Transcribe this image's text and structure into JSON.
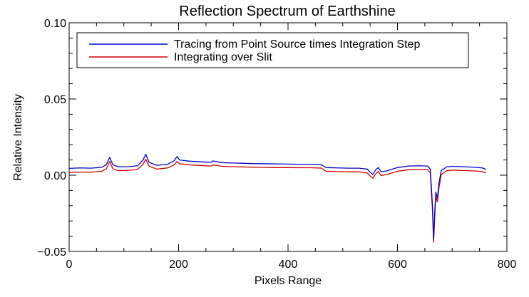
{
  "chart_data": {
    "type": "line",
    "title": "Reflection Spectrum of Earthshine",
    "xlabel": "Pixels Range",
    "ylabel": "Relative Intensity",
    "xlim": [
      0,
      800
    ],
    "ylim": [
      -0.05,
      0.1
    ],
    "x_ticks": [
      0,
      200,
      400,
      600,
      800
    ],
    "x_tick_labels": [
      "0",
      "200",
      "400",
      "600",
      "800"
    ],
    "y_ticks": [
      -0.05,
      0.0,
      0.05,
      0.1
    ],
    "y_tick_labels": [
      "−0.05",
      "0.00",
      "0.05",
      "0.10"
    ],
    "grid": false,
    "legend": "top-left-inside",
    "series": [
      {
        "name": "Tracing from Point Source times Integration Step",
        "color": "#0000cc",
        "points": [
          [
            0,
            0.0045
          ],
          [
            20,
            0.0048
          ],
          [
            40,
            0.0046
          ],
          [
            60,
            0.0052
          ],
          [
            68,
            0.007
          ],
          [
            74,
            0.0118
          ],
          [
            80,
            0.0068
          ],
          [
            90,
            0.0055
          ],
          [
            110,
            0.0056
          ],
          [
            125,
            0.0062
          ],
          [
            135,
            0.01
          ],
          [
            140,
            0.0138
          ],
          [
            146,
            0.0085
          ],
          [
            160,
            0.0065
          ],
          [
            180,
            0.0072
          ],
          [
            192,
            0.0095
          ],
          [
            197,
            0.0122
          ],
          [
            202,
            0.01
          ],
          [
            220,
            0.0092
          ],
          [
            240,
            0.0088
          ],
          [
            260,
            0.0085
          ],
          [
            262,
            0.0094
          ],
          [
            280,
            0.0082
          ],
          [
            300,
            0.008
          ],
          [
            320,
            0.0078
          ],
          [
            340,
            0.0076
          ],
          [
            360,
            0.0075
          ],
          [
            380,
            0.0074
          ],
          [
            400,
            0.0073
          ],
          [
            420,
            0.0072
          ],
          [
            440,
            0.0072
          ],
          [
            460,
            0.007
          ],
          [
            465,
            0.006
          ],
          [
            470,
            0.005
          ],
          [
            490,
            0.0048
          ],
          [
            510,
            0.0046
          ],
          [
            530,
            0.0046
          ],
          [
            545,
            0.004
          ],
          [
            550,
            0.002
          ],
          [
            555,
            0.0005
          ],
          [
            560,
            0.0035
          ],
          [
            565,
            0.005
          ],
          [
            570,
            0.0022
          ],
          [
            580,
            0.0028
          ],
          [
            600,
            0.005
          ],
          [
            620,
            0.006
          ],
          [
            640,
            0.0062
          ],
          [
            655,
            0.006
          ],
          [
            660,
            0.004
          ],
          [
            664,
            -0.02
          ],
          [
            666,
            -0.042
          ],
          [
            668,
            -0.025
          ],
          [
            670,
            -0.011
          ],
          [
            673,
            -0.015
          ],
          [
            676,
            -0.005
          ],
          [
            680,
            0.003
          ],
          [
            690,
            0.0055
          ],
          [
            700,
            0.0058
          ],
          [
            720,
            0.0056
          ],
          [
            740,
            0.0052
          ],
          [
            755,
            0.0048
          ],
          [
            762,
            0.0038
          ]
        ]
      },
      {
        "name": "Integrating over Slit",
        "color": "#cc0000",
        "points": [
          [
            0,
            0.0018
          ],
          [
            20,
            0.002
          ],
          [
            40,
            0.002
          ],
          [
            60,
            0.0026
          ],
          [
            68,
            0.0042
          ],
          [
            74,
            0.009
          ],
          [
            80,
            0.0042
          ],
          [
            90,
            0.003
          ],
          [
            110,
            0.0032
          ],
          [
            125,
            0.0038
          ],
          [
            135,
            0.0072
          ],
          [
            140,
            0.0105
          ],
          [
            146,
            0.006
          ],
          [
            160,
            0.004
          ],
          [
            180,
            0.0048
          ],
          [
            192,
            0.0068
          ],
          [
            197,
            0.009
          ],
          [
            202,
            0.0075
          ],
          [
            220,
            0.0068
          ],
          [
            240,
            0.0064
          ],
          [
            260,
            0.006
          ],
          [
            262,
            0.0068
          ],
          [
            280,
            0.0058
          ],
          [
            300,
            0.0056
          ],
          [
            320,
            0.0054
          ],
          [
            340,
            0.0052
          ],
          [
            360,
            0.0051
          ],
          [
            380,
            0.005
          ],
          [
            400,
            0.005
          ],
          [
            420,
            0.0049
          ],
          [
            440,
            0.0049
          ],
          [
            460,
            0.0047
          ],
          [
            465,
            0.0036
          ],
          [
            470,
            0.0026
          ],
          [
            490,
            0.0024
          ],
          [
            510,
            0.0022
          ],
          [
            530,
            0.0022
          ],
          [
            545,
            0.0014
          ],
          [
            550,
            -0.0005
          ],
          [
            555,
            -0.002
          ],
          [
            560,
            0.0008
          ],
          [
            565,
            0.0025
          ],
          [
            570,
            -0.0002
          ],
          [
            580,
            0.0004
          ],
          [
            600,
            0.0026
          ],
          [
            620,
            0.0036
          ],
          [
            640,
            0.0038
          ],
          [
            655,
            0.0036
          ],
          [
            660,
            0.0015
          ],
          [
            664,
            -0.023
          ],
          [
            666,
            -0.044
          ],
          [
            668,
            -0.028
          ],
          [
            670,
            -0.014
          ],
          [
            673,
            -0.0175
          ],
          [
            676,
            -0.008
          ],
          [
            680,
            0.0005
          ],
          [
            690,
            0.003
          ],
          [
            700,
            0.0033
          ],
          [
            720,
            0.0031
          ],
          [
            740,
            0.0028
          ],
          [
            755,
            0.0024
          ],
          [
            762,
            0.0014
          ]
        ]
      }
    ]
  }
}
